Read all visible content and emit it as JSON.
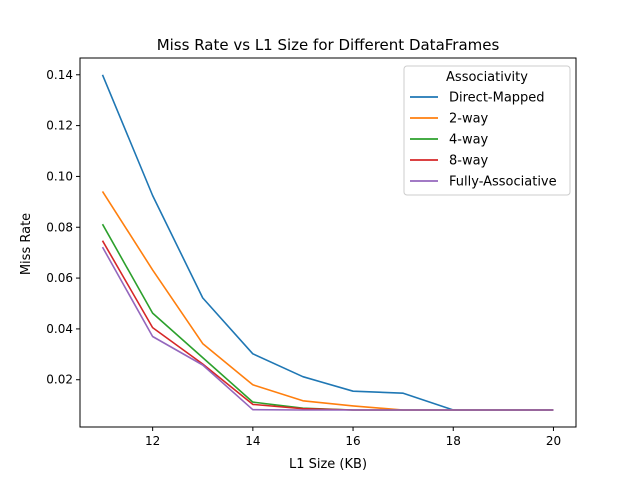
{
  "chart_data": {
    "type": "line",
    "title": "Miss Rate vs L1 Size for Different DataFrames",
    "xlabel": "L1 Size (KB)",
    "ylabel": "Miss Rate",
    "x": [
      11,
      12,
      13,
      14,
      15,
      16,
      17,
      18,
      19,
      20
    ],
    "xlim": [
      10.55,
      20.45
    ],
    "ylim": [
      0.0014,
      0.1466
    ],
    "xticks": [
      12,
      14,
      16,
      18,
      20
    ],
    "yticks": [
      0.02,
      0.04,
      0.06,
      0.08,
      0.1,
      0.12,
      0.14
    ],
    "ytick_labels": [
      "0.02",
      "0.04",
      "0.06",
      "0.08",
      "0.10",
      "0.12",
      "0.14"
    ],
    "grid": false,
    "legend": {
      "title": "Associativity",
      "placement": "top-right"
    },
    "series": [
      {
        "name": "Direct-Mapped",
        "color": "#1f77b4",
        "values": [
          0.14,
          0.0925,
          0.0522,
          0.0302,
          0.0212,
          0.0155,
          0.0147,
          0.0081,
          0.0081,
          0.0081
        ]
      },
      {
        "name": "2-way",
        "color": "#ff7f0e",
        "values": [
          0.0941,
          0.0632,
          0.0342,
          0.018,
          0.0117,
          0.0097,
          0.0081,
          0.0081,
          0.0081,
          0.0081
        ]
      },
      {
        "name": "4-way",
        "color": "#2ca02c",
        "values": [
          0.0812,
          0.0462,
          0.0287,
          0.0112,
          0.0088,
          0.0081,
          0.0081,
          0.0081,
          0.0081,
          0.0081
        ]
      },
      {
        "name": "8-way",
        "color": "#d62728",
        "values": [
          0.0747,
          0.0405,
          0.0262,
          0.0103,
          0.0086,
          0.0081,
          0.0081,
          0.0081,
          0.0081,
          0.0081
        ]
      },
      {
        "name": "Fully-Associative",
        "color": "#9467bd",
        "values": [
          0.0722,
          0.037,
          0.0258,
          0.0082,
          0.0081,
          0.0081,
          0.0081,
          0.0081,
          0.0081,
          0.0081
        ]
      }
    ]
  }
}
